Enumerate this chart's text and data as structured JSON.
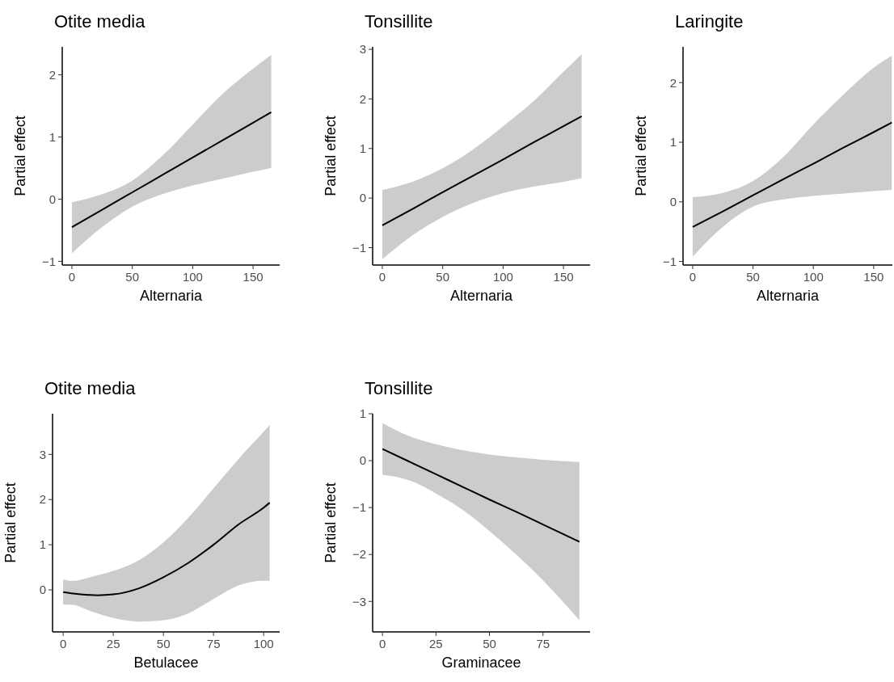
{
  "chart_data": [
    {
      "type": "line",
      "title": "Otite media",
      "xlabel": "Alternaria",
      "ylabel": "Partial effect",
      "xlim": [
        -8,
        172
      ],
      "ylim": [
        -1.06,
        2.45
      ],
      "xticks": [
        0,
        50,
        100,
        150
      ],
      "yticks": [
        {
          "value": -1,
          "label": "−1"
        },
        0,
        1,
        2
      ],
      "series": [
        {
          "color": "#000000",
          "x": [
            0,
            25,
            50,
            75,
            100,
            125,
            150,
            165
          ],
          "values": [
            -0.45,
            -0.17,
            0.11,
            0.39,
            0.67,
            0.95,
            1.23,
            1.4
          ],
          "lower": [
            -0.87,
            -0.45,
            -0.12,
            0.08,
            0.22,
            0.33,
            0.44,
            0.5
          ],
          "upper": [
            -0.05,
            0.08,
            0.3,
            0.7,
            1.2,
            1.7,
            2.1,
            2.32
          ]
        }
      ]
    },
    {
      "type": "line",
      "title": "Tonsillite",
      "xlabel": "Alternaria",
      "ylabel": "Partial effect",
      "xlim": [
        -8,
        172
      ],
      "ylim": [
        -1.35,
        3.05
      ],
      "xticks": [
        0,
        50,
        100,
        150
      ],
      "yticks": [
        {
          "value": -1,
          "label": "−1"
        },
        0,
        1,
        2,
        3
      ],
      "series": [
        {
          "color": "#000000",
          "x": [
            0,
            25,
            50,
            75,
            100,
            125,
            150,
            165
          ],
          "values": [
            -0.55,
            -0.22,
            0.12,
            0.45,
            0.78,
            1.12,
            1.45,
            1.65
          ],
          "lower": [
            -1.23,
            -0.75,
            -0.38,
            -0.1,
            0.1,
            0.23,
            0.33,
            0.4
          ],
          "upper": [
            0.16,
            0.33,
            0.6,
            0.98,
            1.45,
            1.95,
            2.55,
            2.9
          ]
        }
      ]
    },
    {
      "type": "line",
      "title": "Laringite",
      "xlabel": "Alternaria",
      "ylabel": "Partial effect",
      "xlim": [
        -8,
        165.5
      ],
      "ylim": [
        -1.06,
        2.6
      ],
      "xticks": [
        0,
        50,
        100,
        150
      ],
      "yticks": [
        {
          "value": -1,
          "label": "−1"
        },
        0,
        1,
        2
      ],
      "series": [
        {
          "color": "#000000",
          "x": [
            0,
            25,
            50,
            75,
            100,
            125,
            150,
            165
          ],
          "values": [
            -0.42,
            -0.16,
            0.11,
            0.38,
            0.64,
            0.91,
            1.17,
            1.33
          ],
          "lower": [
            -0.92,
            -0.42,
            -0.08,
            0.04,
            0.1,
            0.14,
            0.18,
            0.2
          ],
          "upper": [
            0.08,
            0.15,
            0.35,
            0.75,
            1.3,
            1.8,
            2.25,
            2.45
          ]
        }
      ]
    },
    {
      "type": "line",
      "title": "Otite media",
      "xlabel": "Betulacee",
      "ylabel": "Partial effect",
      "xlim": [
        -5.3,
        108
      ],
      "ylim": [
        -0.93,
        3.9
      ],
      "xticks": [
        0,
        25,
        50,
        75,
        100
      ],
      "yticks": [
        0,
        1,
        2,
        3
      ],
      "series": [
        {
          "color": "#000000",
          "x": [
            0,
            5,
            12.5,
            17,
            25,
            37.5,
            50,
            62.5,
            75,
            87.5,
            100,
            103
          ],
          "values": [
            -0.05,
            -0.08,
            -0.11,
            -0.12,
            -0.1,
            0.03,
            0.28,
            0.6,
            1.0,
            1.45,
            1.82,
            1.93
          ],
          "lower": [
            -0.32,
            -0.33,
            -0.45,
            -0.52,
            -0.62,
            -0.7,
            -0.67,
            -0.52,
            -0.2,
            0.1,
            0.2,
            0.2
          ],
          "upper": [
            0.23,
            0.2,
            0.27,
            0.32,
            0.42,
            0.65,
            1.05,
            1.6,
            2.25,
            2.9,
            3.5,
            3.65
          ]
        }
      ]
    },
    {
      "type": "line",
      "title": "Tonsillite",
      "xlabel": "Graminacee",
      "ylabel": "Partial effect",
      "xlim": [
        -4.6,
        97
      ],
      "ylim": [
        -3.65,
        1.0
      ],
      "xticks": [
        0,
        25,
        50,
        75
      ],
      "yticks": [
        {
          "value": -3,
          "label": "−3"
        },
        {
          "value": -2,
          "label": "−2"
        },
        {
          "value": -1,
          "label": "−1"
        },
        0,
        1
      ],
      "series": [
        {
          "color": "#000000",
          "x": [
            0,
            12.5,
            25,
            37.5,
            50,
            62.5,
            75,
            92
          ],
          "values": [
            0.25,
            -0.02,
            -0.29,
            -0.56,
            -0.83,
            -1.09,
            -1.36,
            -1.73
          ],
          "lower": [
            -0.3,
            -0.42,
            -0.7,
            -1.05,
            -1.5,
            -2.0,
            -2.55,
            -3.4
          ],
          "upper": [
            0.8,
            0.52,
            0.35,
            0.22,
            0.13,
            0.07,
            0.02,
            -0.03
          ]
        }
      ]
    }
  ]
}
